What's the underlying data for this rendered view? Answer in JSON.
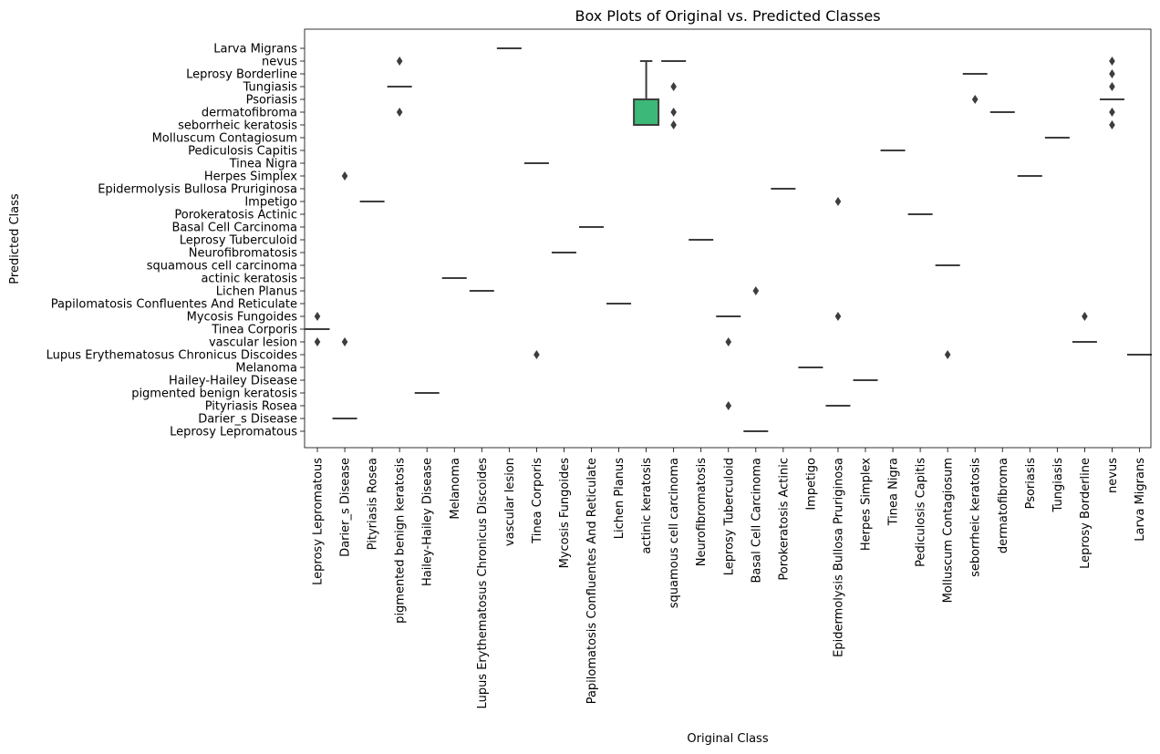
{
  "chart_data": {
    "type": "box",
    "title": "Box Plots of Original vs. Predicted Classes",
    "xlabel": "Original Class",
    "ylabel": "Predicted Class",
    "x_categories": [
      "Leprosy Lepromatous",
      "Darier_s Disease",
      "Pityriasis Rosea",
      "pigmented benign keratosis",
      "Hailey-Hailey Disease",
      "Melanoma",
      "Lupus Erythematosus Chronicus Discoides",
      "vascular lesion",
      "Tinea Corporis",
      "Mycosis Fungoides",
      "Papilomatosis Confluentes And Reticulate",
      "Lichen Planus",
      "actinic keratosis",
      "squamous cell carcinoma",
      "Neurofibromatosis",
      "Leprosy Tuberculoid",
      "Basal Cell Carcinoma",
      "Porokeratosis Actinic",
      "Impetigo",
      "Epidermolysis Bullosa Pruriginosa",
      "Herpes Simplex",
      "Tinea Nigra",
      "Pediculosis Capitis",
      "Molluscum Contagiosum",
      "seborrheic keratosis",
      "dermatofibroma",
      "Psoriasis",
      "Tungiasis",
      "Leprosy Borderline",
      "nevus",
      "Larva Migrans"
    ],
    "y_categories": [
      "Larva Migrans",
      "nevus",
      "Leprosy Borderline",
      "Tungiasis",
      "Psoriasis",
      "dermatofibroma",
      "seborrheic keratosis",
      "Molluscum Contagiosum",
      "Pediculosis Capitis",
      "Tinea Nigra",
      "Herpes Simplex",
      "Epidermolysis Bullosa Pruriginosa",
      "Impetigo",
      "Porokeratosis Actinic",
      "Basal Cell Carcinoma",
      "Leprosy Tuberculoid",
      "Neurofibromatosis",
      "squamous cell carcinoma",
      "actinic keratosis",
      "Lichen Planus",
      "Papilomatosis Confluentes And Reticulate",
      "Mycosis Fungoides",
      "Tinea Corporis",
      "vascular lesion",
      "Lupus Erythematosus Chronicus Discoides",
      "Melanoma",
      "Hailey-Hailey Disease",
      "pigmented benign keratosis",
      "Pityriasis Rosea",
      "Darier_s Disease",
      "Leprosy Lepromatous"
    ],
    "boxes": [
      {
        "x": "Leprosy Lepromatous",
        "median": "Tinea Corporis",
        "outliers": [
          "Mycosis Fungoides",
          "vascular lesion"
        ]
      },
      {
        "x": "Darier_s Disease",
        "median": "Darier_s Disease",
        "outliers": [
          "Herpes Simplex",
          "vascular lesion"
        ]
      },
      {
        "x": "Pityriasis Rosea",
        "median": "Impetigo",
        "outliers": []
      },
      {
        "x": "pigmented benign keratosis",
        "median": "Tungiasis",
        "outliers": [
          "nevus",
          "dermatofibroma"
        ]
      },
      {
        "x": "Hailey-Hailey Disease",
        "median": "pigmented benign keratosis",
        "outliers": []
      },
      {
        "x": "Melanoma",
        "median": "actinic keratosis",
        "outliers": []
      },
      {
        "x": "Lupus Erythematosus Chronicus Discoides",
        "median": "Lichen Planus",
        "outliers": []
      },
      {
        "x": "vascular lesion",
        "median": "Larva Migrans",
        "outliers": []
      },
      {
        "x": "Tinea Corporis",
        "median": "Tinea Nigra",
        "outliers": [
          "Lupus Erythematosus Chronicus Discoides"
        ]
      },
      {
        "x": "Mycosis Fungoides",
        "median": "Neurofibromatosis",
        "outliers": []
      },
      {
        "x": "Papilomatosis Confluentes And Reticulate",
        "median": "Basal Cell Carcinoma",
        "outliers": []
      },
      {
        "x": "Lichen Planus",
        "median": "Papilomatosis Confluentes And Reticulate",
        "outliers": []
      },
      {
        "x": "actinic keratosis",
        "q1": "Psoriasis",
        "q3": "seborrheic keratosis",
        "whisker_low": "nevus",
        "whisker_high": "seborrheic keratosis",
        "median": "seborrheic keratosis",
        "outliers": []
      },
      {
        "x": "squamous cell carcinoma",
        "median": "nevus",
        "outliers": [
          "Tungiasis",
          "dermatofibroma",
          "seborrheic keratosis"
        ]
      },
      {
        "x": "Neurofibromatosis",
        "median": "Leprosy Tuberculoid",
        "outliers": []
      },
      {
        "x": "Leprosy Tuberculoid",
        "median": "Mycosis Fungoides",
        "outliers": [
          "vascular lesion",
          "Pityriasis Rosea"
        ]
      },
      {
        "x": "Basal Cell Carcinoma",
        "median": "Leprosy Lepromatous",
        "outliers": [
          "Lichen Planus"
        ]
      },
      {
        "x": "Porokeratosis Actinic",
        "median": "Epidermolysis Bullosa Pruriginosa",
        "outliers": []
      },
      {
        "x": "Impetigo",
        "median": "Melanoma",
        "outliers": []
      },
      {
        "x": "Epidermolysis Bullosa Pruriginosa",
        "median": "Pityriasis Rosea",
        "outliers": [
          "Impetigo",
          "Mycosis Fungoides"
        ]
      },
      {
        "x": "Herpes Simplex",
        "median": "Hailey-Hailey Disease",
        "outliers": []
      },
      {
        "x": "Tinea Nigra",
        "median": "Pediculosis Capitis",
        "outliers": []
      },
      {
        "x": "Pediculosis Capitis",
        "median": "Porokeratosis Actinic",
        "outliers": []
      },
      {
        "x": "Molluscum Contagiosum",
        "median": "squamous cell carcinoma",
        "outliers": [
          "Lupus Erythematosus Chronicus Discoides"
        ]
      },
      {
        "x": "seborrheic keratosis",
        "median": "Leprosy Borderline",
        "outliers": [
          "Psoriasis"
        ]
      },
      {
        "x": "dermatofibroma",
        "median": "dermatofibroma",
        "outliers": []
      },
      {
        "x": "Psoriasis",
        "median": "Herpes Simplex",
        "outliers": []
      },
      {
        "x": "Tungiasis",
        "median": "Molluscum Contagiosum",
        "outliers": []
      },
      {
        "x": "Leprosy Borderline",
        "median": "vascular lesion",
        "outliers": [
          "Mycosis Fungoides"
        ]
      },
      {
        "x": "nevus",
        "median": "Psoriasis",
        "outliers": [
          "nevus",
          "Leprosy Borderline",
          "Tungiasis",
          "dermatofibroma",
          "seborrheic keratosis"
        ]
      },
      {
        "x": "Larva Migrans",
        "median": "Lupus Erythematosus Chronicus Discoides",
        "outliers": []
      }
    ],
    "colors": {
      "box_fill": "#3cb878",
      "line": "#3d3d3d"
    },
    "grid": false,
    "legend": "none"
  }
}
